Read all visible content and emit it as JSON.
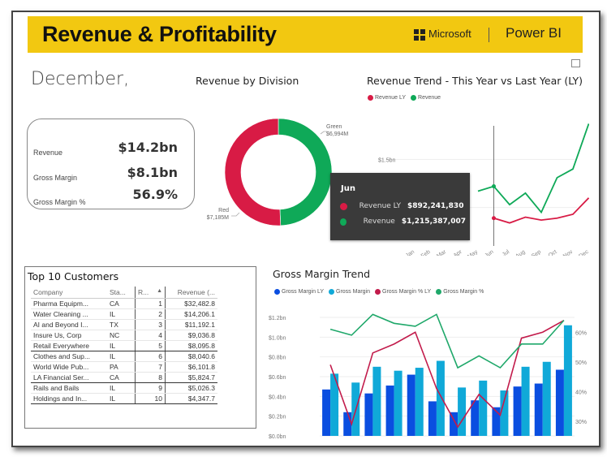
{
  "header": {
    "title": "Revenue & Profitability",
    "brand": "Microsoft",
    "product": "Power BI",
    "expand_icon": "focus-mode-icon"
  },
  "period_label": "December,",
  "kpis": [
    {
      "label": "Revenue",
      "value": "$14.2bn"
    },
    {
      "label": "Gross Margin",
      "value": "$8.1bn"
    },
    {
      "label": "Gross Margin %",
      "value": "56.9%"
    }
  ],
  "colors": {
    "banner": "#f2c811",
    "red": "#d81b45",
    "green": "#0fa958",
    "gm_ly": "#0a4ee0",
    "gm": "#10a9d8",
    "gm_pct_ly": "#c21b4b",
    "gm_pct": "#1fa86a"
  },
  "chart_data": [
    {
      "type": "pie",
      "title": "Revenue by Division",
      "variant": "donut",
      "slices": [
        {
          "label": "Green",
          "value_label": "$6,994M",
          "value": 6994
        },
        {
          "label": "Red",
          "value_label": "$7,185M",
          "value": 7185
        }
      ]
    },
    {
      "type": "line",
      "title": "Revenue Trend - This Year vs Last Year (LY)",
      "legend": [
        "Revenue LY",
        "Revenue"
      ],
      "legend_position": "top-left",
      "x": [
        "Jan",
        "Feb",
        "Mar",
        "Apr",
        "May",
        "Jun",
        "Jul",
        "Aug",
        "Sep",
        "Oct",
        "Nov",
        "Dec"
      ],
      "y_tick_label": "$1.5bn",
      "ylim": [
        0.5,
        2.0
      ],
      "series": [
        {
          "name": "Revenue LY",
          "values": [
            null,
            null,
            null,
            null,
            null,
            0.89,
            0.84,
            0.9,
            0.87,
            0.89,
            0.93,
            1.1
          ]
        },
        {
          "name": "Revenue",
          "values": [
            null,
            null,
            null,
            null,
            1.17,
            1.22,
            1.03,
            1.15,
            0.95,
            1.31,
            1.4,
            1.87
          ]
        }
      ],
      "tooltip": {
        "month": "Jun",
        "rows": [
          {
            "name": "Revenue LY",
            "value": "$892,241,830"
          },
          {
            "name": "Revenue",
            "value": "$1,215,387,007"
          }
        ]
      }
    },
    {
      "type": "bar",
      "title": "Gross Margin Trend",
      "legend": [
        "Gross Margin LY",
        "Gross Margin",
        "Gross Margin % LY",
        "Gross Margin %"
      ],
      "legend_position": "top-left",
      "categories": [
        "Jan",
        "Feb",
        "Mar",
        "Apr",
        "May",
        "Jun",
        "Jul",
        "Aug",
        "Sep",
        "Oct",
        "Nov",
        "Dec"
      ],
      "y_ticks": [
        "$0.0bn",
        "$0.2bn",
        "$0.4bn",
        "$0.6bn",
        "$0.8bn",
        "$1.0bn",
        "$1.2bn"
      ],
      "ylim": [
        0,
        1.2
      ],
      "y2_ticks": [
        "30%",
        "40%",
        "50%",
        "60%"
      ],
      "y2lim": [
        25,
        65
      ],
      "series": [
        {
          "name": "Gross Margin LY",
          "kind": "bar",
          "values": [
            0.47,
            0.24,
            0.43,
            0.51,
            0.62,
            0.35,
            0.24,
            0.36,
            0.29,
            0.5,
            0.53,
            0.67
          ]
        },
        {
          "name": "Gross Margin",
          "kind": "bar",
          "values": [
            0.63,
            0.54,
            0.7,
            0.66,
            0.69,
            0.76,
            0.49,
            0.56,
            0.46,
            0.7,
            0.75,
            1.12
          ]
        },
        {
          "name": "Gross Margin % LY",
          "kind": "line",
          "axis": "y2",
          "values": [
            49,
            29,
            53,
            56,
            60,
            41,
            28,
            39,
            32,
            58,
            60,
            64
          ]
        },
        {
          "name": "Gross Margin %",
          "kind": "line",
          "axis": "y2",
          "values": [
            61,
            59,
            66,
            63,
            62,
            66,
            48,
            52,
            48,
            56,
            56,
            64
          ]
        }
      ]
    }
  ],
  "top_customers": {
    "title": "Top 10 Customers",
    "columns": [
      "Company",
      "Sta...",
      "R...",
      "Revenue (..."
    ],
    "sort_icon": "sort-ascending-icon",
    "rows": [
      {
        "company": "Pharma Equipm...",
        "state": "CA",
        "rank": "1",
        "revenue": "$32,482.8"
      },
      {
        "company": "Water Cleaning ...",
        "state": "IL",
        "rank": "2",
        "revenue": "$14,206.1"
      },
      {
        "company": "AI and Beyond I...",
        "state": "TX",
        "rank": "3",
        "revenue": "$11,192.1"
      },
      {
        "company": "Insure Us, Corp",
        "state": "NC",
        "rank": "4",
        "revenue": "$9,036.8"
      },
      {
        "company": "Retail Everywhere",
        "state": "IL",
        "rank": "5",
        "revenue": "$8,095.8"
      },
      {
        "company": "Clothes and Sup...",
        "state": "IL",
        "rank": "6",
        "revenue": "$8,040.6"
      },
      {
        "company": "World Wide Pub...",
        "state": "PA",
        "rank": "7",
        "revenue": "$6,101.8"
      },
      {
        "company": "LA Financial Ser...",
        "state": "CA",
        "rank": "8",
        "revenue": "$5,824.7"
      },
      {
        "company": "Rails and Bails",
        "state": "IL",
        "rank": "9",
        "revenue": "$5,026.3"
      },
      {
        "company": "Holdings and In...",
        "state": "IL",
        "rank": "10",
        "revenue": "$4,347.7"
      }
    ]
  }
}
